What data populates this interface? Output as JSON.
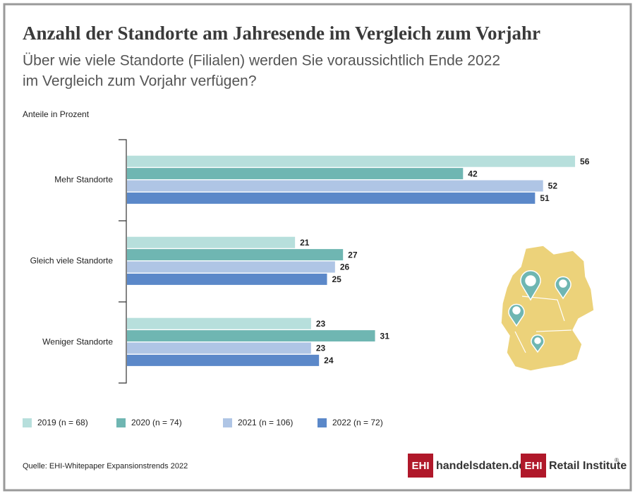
{
  "chart_data": {
    "type": "bar",
    "orientation": "horizontal",
    "title": "Anzahl der Standorte am Jahresende im Vergleich zum Vorjahr",
    "subtitle": [
      "Über wie viele Standorte (Filialen) werden Sie voraussichtlich Ende 2022",
      "im Vergleich zum Vorjahr verfügen?"
    ],
    "unit_label": "Anteile in Prozent",
    "categories": [
      "Mehr Standorte",
      "Gleich viele Standorte",
      "Weniger Standorte"
    ],
    "series": [
      {
        "name": "2019 (n = 68)",
        "color": "#b7dfdc",
        "values": [
          56,
          21,
          23
        ]
      },
      {
        "name": "2020 (n = 74)",
        "color": "#6fb6b2",
        "values": [
          42,
          27,
          31
        ]
      },
      {
        "name": "2021 (n = 106)",
        "color": "#afc5e5",
        "values": [
          52,
          26,
          23
        ]
      },
      {
        "name": "2022 (n = 72)",
        "color": "#5b88c9",
        "values": [
          51,
          25,
          24
        ]
      }
    ],
    "source": "Quelle: EHI-Whitepaper Expansionstrends 2022",
    "logos": [
      {
        "mark": "EHI",
        "text": "handelsdaten.de"
      },
      {
        "mark": "EHI",
        "text": "Retail Institute",
        "sup": "®"
      }
    ]
  }
}
